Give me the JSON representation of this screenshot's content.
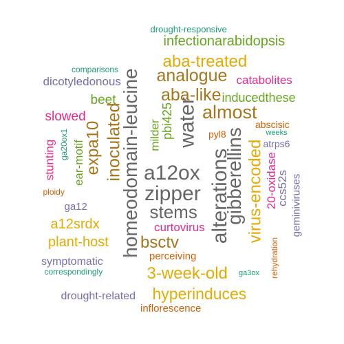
{
  "colors": {
    "gray": "#666666",
    "olive": "#a6761d",
    "gold": "#e6ab02",
    "green": "#66a61e",
    "magenta": "#e7298a",
    "purple": "#7570b3",
    "orange": "#d95f02",
    "teal": "#1b9e77"
  },
  "words": [
    {
      "text": "drought-responsive",
      "color": "teal"
    },
    {
      "text": "infectionarabidopsis",
      "color": "green"
    },
    {
      "text": "aba-treated",
      "color": "gold"
    },
    {
      "text": "comparisons",
      "color": "teal"
    },
    {
      "text": "analogue",
      "color": "olive"
    },
    {
      "text": "catabolites",
      "color": "magenta"
    },
    {
      "text": "dicotyledonous",
      "color": "purple"
    },
    {
      "text": "aba-like",
      "color": "olive"
    },
    {
      "text": "beet",
      "color": "green"
    },
    {
      "text": "inducedthese",
      "color": "green"
    },
    {
      "text": "almost",
      "color": "olive"
    },
    {
      "text": "slowed",
      "color": "magenta"
    },
    {
      "text": "abscisic",
      "color": "orange"
    },
    {
      "text": "weeks",
      "color": "teal"
    },
    {
      "text": "pyl8",
      "color": "orange"
    },
    {
      "text": "atrps6",
      "color": "purple"
    },
    {
      "text": "homeodomain-leucine",
      "color": "gray"
    },
    {
      "text": "water",
      "color": "gray"
    },
    {
      "text": "inoculated",
      "color": "olive"
    },
    {
      "text": "expa10",
      "color": "olive"
    },
    {
      "text": "milder",
      "color": "green"
    },
    {
      "text": "pbi425",
      "color": "green"
    },
    {
      "text": "ear-motif",
      "color": "green"
    },
    {
      "text": "ga20ox1",
      "color": "teal"
    },
    {
      "text": "stunting",
      "color": "magenta"
    },
    {
      "text": "a12ox",
      "color": "gray"
    },
    {
      "text": "alterations",
      "color": "gray"
    },
    {
      "text": "gibberellins",
      "color": "gray"
    },
    {
      "text": "virus-encoded",
      "color": "gold"
    },
    {
      "text": "20-oxidase",
      "color": "magenta"
    },
    {
      "text": "ccs52s",
      "color": "purple"
    },
    {
      "text": "geminiviruses",
      "color": "purple"
    },
    {
      "text": "zipper",
      "color": "gray"
    },
    {
      "text": "ploidy",
      "color": "orange"
    },
    {
      "text": "ga12",
      "color": "purple"
    },
    {
      "text": "stems",
      "color": "gray"
    },
    {
      "text": "a12srdx",
      "color": "gold"
    },
    {
      "text": "curtovirus",
      "color": "magenta"
    },
    {
      "text": "plant-host",
      "color": "gold"
    },
    {
      "text": "bsctv",
      "color": "olive"
    },
    {
      "text": "rehydration",
      "color": "orange"
    },
    {
      "text": "perceiving",
      "color": "orange"
    },
    {
      "text": "symptomatic",
      "color": "purple"
    },
    {
      "text": "correspondingly",
      "color": "teal"
    },
    {
      "text": "3-week-old",
      "color": "gold"
    },
    {
      "text": "ga3ox",
      "color": "teal"
    },
    {
      "text": "drought-related",
      "color": "purple"
    },
    {
      "text": "hyperinduces",
      "color": "gold"
    },
    {
      "text": "inflorescence",
      "color": "orange"
    }
  ]
}
